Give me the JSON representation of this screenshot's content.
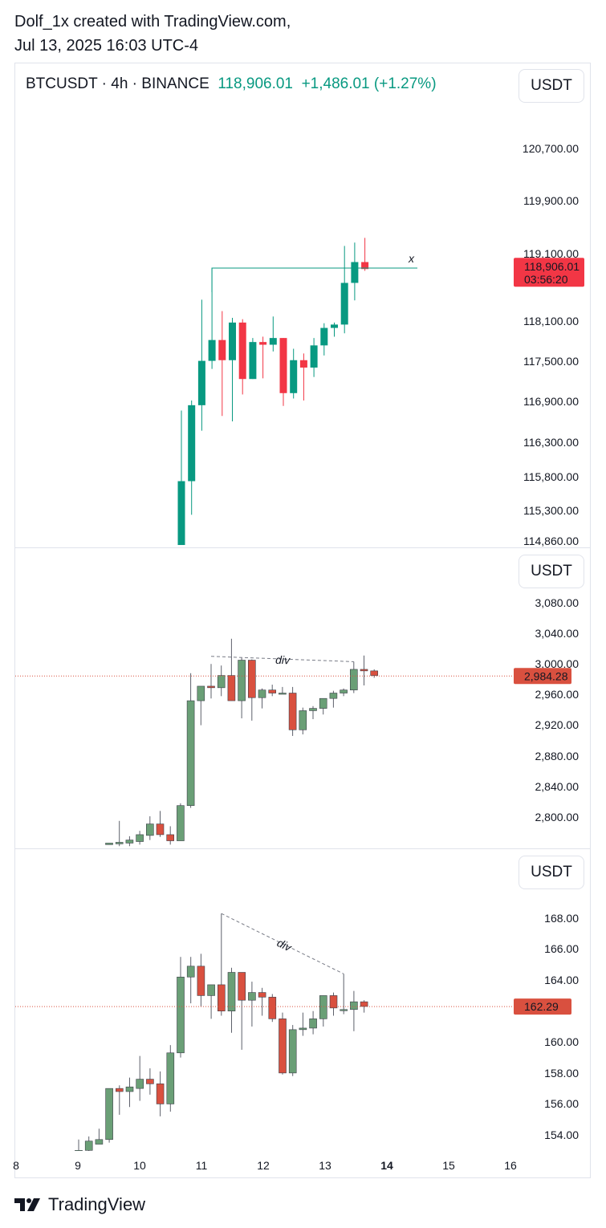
{
  "header": {
    "line1": "Dolf_1x created with TradingView.com,",
    "line2": "Jul 13, 2025 16:03 UTC-4"
  },
  "symbol": {
    "name": "BTCUSDT · 4h · BINANCE",
    "price": "118,906.01",
    "change": "+1,486.01 (+1.27%)"
  },
  "currency_button": "USDT",
  "footer": {
    "brand": "TradingView"
  },
  "colors": {
    "up": "#089981",
    "down": "#f23645",
    "up_muted": "#6a9f76",
    "down_muted": "#d9503f",
    "grid": "#e0e3eb"
  },
  "chart_data": [
    {
      "type": "candlestick",
      "pane": "top",
      "y_ticks": [
        "120,700.00",
        "119,900.00",
        "119,100.00",
        "118,100.00",
        "117,500.00",
        "116,900.00",
        "116,300.00",
        "115,800.00",
        "115,300.00",
        "114,860.00"
      ],
      "last_price_label": "118,906.01",
      "countdown_label": "03:56:20",
      "ylim": [
        114800,
        121200
      ],
      "horizontal_line": {
        "y": 118920,
        "marker": "x"
      },
      "candles": [
        {
          "o": 114800,
          "h": 116800,
          "l": 114800,
          "c": 115750
        },
        {
          "o": 115750,
          "h": 116950,
          "l": 115250,
          "c": 116880
        },
        {
          "o": 116880,
          "h": 118450,
          "l": 116500,
          "c": 117540
        },
        {
          "o": 117540,
          "h": 118920,
          "l": 117420,
          "c": 117850
        },
        {
          "o": 117850,
          "h": 118280,
          "l": 116720,
          "c": 117550
        },
        {
          "o": 117550,
          "h": 118180,
          "l": 116640,
          "c": 118110
        },
        {
          "o": 118110,
          "h": 118160,
          "l": 117040,
          "c": 117270
        },
        {
          "o": 117270,
          "h": 117880,
          "l": 117270,
          "c": 117820
        },
        {
          "o": 117820,
          "h": 117900,
          "l": 117280,
          "c": 117780
        },
        {
          "o": 117780,
          "h": 118200,
          "l": 117680,
          "c": 117880
        },
        {
          "o": 117880,
          "h": 117880,
          "l": 116870,
          "c": 117060
        },
        {
          "o": 117060,
          "h": 117720,
          "l": 116980,
          "c": 117550
        },
        {
          "o": 117550,
          "h": 117650,
          "l": 116950,
          "c": 117440
        },
        {
          "o": 117440,
          "h": 117880,
          "l": 117300,
          "c": 117770
        },
        {
          "o": 117770,
          "h": 118100,
          "l": 117620,
          "c": 118030
        },
        {
          "o": 118030,
          "h": 118110,
          "l": 117900,
          "c": 118080
        },
        {
          "o": 118080,
          "h": 119250,
          "l": 117950,
          "c": 118700
        },
        {
          "o": 118700,
          "h": 119300,
          "l": 118440,
          "c": 119010
        },
        {
          "o": 119010,
          "h": 119370,
          "l": 118880,
          "c": 118906
        }
      ]
    },
    {
      "type": "candlestick",
      "pane": "middle",
      "y_ticks": [
        "3,080.00",
        "3,040.00",
        "3,000.00",
        "2,960.00",
        "2,920.00",
        "2,880.00",
        "2,840.00",
        "2,800.00"
      ],
      "last_price_label": "2,984.28",
      "ylim": [
        2762,
        3100
      ],
      "annotation": "div",
      "candles": [
        {
          "o": 2764,
          "h": 2766,
          "l": 2764,
          "c": 2766
        },
        {
          "o": 2765,
          "h": 2795,
          "l": 2762,
          "c": 2767
        },
        {
          "o": 2766,
          "h": 2775,
          "l": 2762,
          "c": 2770
        },
        {
          "o": 2768,
          "h": 2782,
          "l": 2764,
          "c": 2777
        },
        {
          "o": 2776,
          "h": 2801,
          "l": 2770,
          "c": 2791
        },
        {
          "o": 2791,
          "h": 2808,
          "l": 2774,
          "c": 2777
        },
        {
          "o": 2777,
          "h": 2788,
          "l": 2764,
          "c": 2769
        },
        {
          "o": 2769,
          "h": 2818,
          "l": 2769,
          "c": 2815
        },
        {
          "o": 2815,
          "h": 2988,
          "l": 2812,
          "c": 2952
        },
        {
          "o": 2952,
          "h": 2970,
          "l": 2920,
          "c": 2971
        },
        {
          "o": 2971,
          "h": 3000,
          "l": 2955,
          "c": 2969
        },
        {
          "o": 2969,
          "h": 2998,
          "l": 2958,
          "c": 2985
        },
        {
          "o": 2985,
          "h": 3033,
          "l": 2952,
          "c": 2952
        },
        {
          "o": 2952,
          "h": 3008,
          "l": 2929,
          "c": 3005
        },
        {
          "o": 3005,
          "h": 3006,
          "l": 2926,
          "c": 2956
        },
        {
          "o": 2956,
          "h": 2968,
          "l": 2942,
          "c": 2966
        },
        {
          "o": 2966,
          "h": 2973,
          "l": 2958,
          "c": 2962
        },
        {
          "o": 2962,
          "h": 2970,
          "l": 2961,
          "c": 2962
        },
        {
          "o": 2962,
          "h": 2970,
          "l": 2906,
          "c": 2914
        },
        {
          "o": 2914,
          "h": 2943,
          "l": 2908,
          "c": 2939
        },
        {
          "o": 2939,
          "h": 2945,
          "l": 2928,
          "c": 2942
        },
        {
          "o": 2942,
          "h": 2952,
          "l": 2934,
          "c": 2955
        },
        {
          "o": 2955,
          "h": 2965,
          "l": 2943,
          "c": 2962
        },
        {
          "o": 2962,
          "h": 2968,
          "l": 2958,
          "c": 2966
        },
        {
          "o": 2966,
          "h": 3003,
          "l": 2962,
          "c": 2993
        },
        {
          "o": 2993,
          "h": 3011,
          "l": 2972,
          "c": 2991
        },
        {
          "o": 2991,
          "h": 2993,
          "l": 2982,
          "c": 2985
        }
      ]
    },
    {
      "type": "candlestick",
      "pane": "bottom",
      "y_ticks": [
        "168.00",
        "166.00",
        "164.00",
        "160.00",
        "158.00",
        "156.00",
        "154.00"
      ],
      "last_price_label": "162.29",
      "ylim": [
        152.8,
        169.0
      ],
      "annotation": "div",
      "x_ticks": [
        "8",
        "9",
        "10",
        "11",
        "12",
        "13",
        "14",
        "15",
        "16"
      ],
      "candles": [
        {
          "o": 152.8,
          "h": 153.7,
          "l": 152.8,
          "c": 153.0
        },
        {
          "o": 153.0,
          "h": 153.9,
          "l": 152.8,
          "c": 153.6
        },
        {
          "o": 153.4,
          "h": 154.4,
          "l": 153.4,
          "c": 153.7
        },
        {
          "o": 153.7,
          "h": 157.0,
          "l": 153.5,
          "c": 157.0
        },
        {
          "o": 157.0,
          "h": 157.2,
          "l": 155.3,
          "c": 156.8
        },
        {
          "o": 156.8,
          "h": 157.7,
          "l": 155.8,
          "c": 157.1
        },
        {
          "o": 157.0,
          "h": 159.1,
          "l": 156.2,
          "c": 157.6
        },
        {
          "o": 157.6,
          "h": 158.3,
          "l": 156.6,
          "c": 157.3
        },
        {
          "o": 157.3,
          "h": 158.1,
          "l": 155.2,
          "c": 156.0
        },
        {
          "o": 156.0,
          "h": 159.8,
          "l": 155.5,
          "c": 159.3
        },
        {
          "o": 159.3,
          "h": 165.5,
          "l": 159.0,
          "c": 164.2
        },
        {
          "o": 164.2,
          "h": 165.5,
          "l": 162.5,
          "c": 164.9
        },
        {
          "o": 164.9,
          "h": 165.7,
          "l": 162.3,
          "c": 163.0
        },
        {
          "o": 163.0,
          "h": 163.7,
          "l": 161.5,
          "c": 163.7
        },
        {
          "o": 163.7,
          "h": 168.3,
          "l": 161.7,
          "c": 162.0
        },
        {
          "o": 162.0,
          "h": 164.8,
          "l": 160.6,
          "c": 164.5
        },
        {
          "o": 164.5,
          "h": 164.5,
          "l": 159.5,
          "c": 162.7
        },
        {
          "o": 162.7,
          "h": 163.9,
          "l": 161.0,
          "c": 163.2
        },
        {
          "o": 163.2,
          "h": 163.5,
          "l": 161.7,
          "c": 162.9
        },
        {
          "o": 162.9,
          "h": 163.1,
          "l": 161.3,
          "c": 161.5
        },
        {
          "o": 161.5,
          "h": 161.9,
          "l": 157.9,
          "c": 158.0
        },
        {
          "o": 158.0,
          "h": 161.1,
          "l": 157.8,
          "c": 160.8
        },
        {
          "o": 160.8,
          "h": 161.9,
          "l": 160.4,
          "c": 160.9
        },
        {
          "o": 160.9,
          "h": 162.0,
          "l": 160.5,
          "c": 161.5
        },
        {
          "o": 161.5,
          "h": 163.0,
          "l": 161.0,
          "c": 163.0
        },
        {
          "o": 163.0,
          "h": 163.2,
          "l": 161.7,
          "c": 162.2
        },
        {
          "o": 162.1,
          "h": 164.4,
          "l": 161.8,
          "c": 162.1
        },
        {
          "o": 162.1,
          "h": 163.3,
          "l": 160.7,
          "c": 162.6
        },
        {
          "o": 162.6,
          "h": 162.7,
          "l": 161.9,
          "c": 162.3
        }
      ]
    }
  ]
}
